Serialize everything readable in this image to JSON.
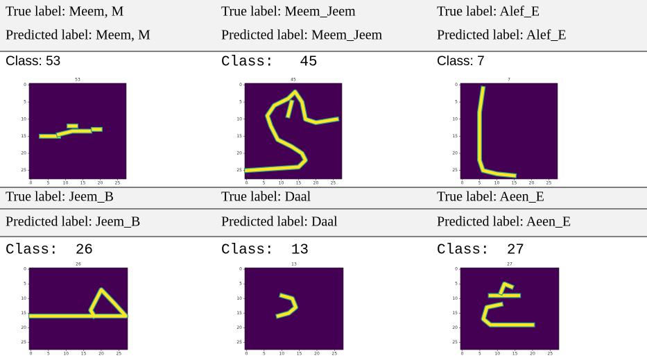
{
  "cells": [
    {
      "true_label": "True label: Meem, M",
      "predicted_label": "Predicted label: Meem, M",
      "class_label": "Class: 53",
      "plot": {
        "title": "53",
        "xticks": [
          0,
          5,
          10,
          15,
          20,
          25
        ],
        "yticks": [
          0,
          5,
          10,
          15,
          20,
          25
        ]
      }
    },
    {
      "true_label": "True label: Meem_Jeem",
      "predicted_label": "Predicted label: Meem_Jeem",
      "class_label": "Class:   45",
      "plot": {
        "title": "45",
        "xticks": [
          0,
          5,
          10,
          15,
          20,
          25
        ],
        "yticks": [
          0,
          5,
          10,
          15,
          20,
          25
        ]
      }
    },
    {
      "true_label": "True label: Alef_E",
      "predicted_label": "Predicted label: Alef_E",
      "class_label": "Class: 7",
      "plot": {
        "title": "7",
        "xticks": [
          0,
          5,
          10,
          15,
          20,
          25
        ],
        "yticks": [
          0,
          5,
          10,
          15,
          20,
          25
        ]
      }
    },
    {
      "true_label": "True label: Jeem_B",
      "predicted_label": "Predicted label: Jeem_B",
      "class_label": "Class:  26",
      "plot": {
        "title": "26",
        "xticks": [
          0,
          5,
          10,
          15,
          20,
          25
        ],
        "yticks": [
          0,
          5,
          10,
          15,
          20,
          25
        ]
      }
    },
    {
      "true_label": "True label: Daal",
      "predicted_label": "Predicted label: Daal",
      "class_label": "Class:  13",
      "plot": {
        "title": "13",
        "xticks": [
          0,
          5,
          10,
          15,
          20,
          25
        ],
        "yticks": [
          0,
          5,
          10,
          15,
          20,
          25
        ]
      }
    },
    {
      "true_label": "True label: Aeen_E",
      "predicted_label": "Predicted label: Aeen_E",
      "class_label": "Class:  27",
      "plot": {
        "title": "27",
        "xticks": [
          0,
          5,
          10,
          15,
          20,
          25
        ],
        "yticks": [
          0,
          5,
          10,
          15,
          20,
          25
        ]
      }
    }
  ]
}
